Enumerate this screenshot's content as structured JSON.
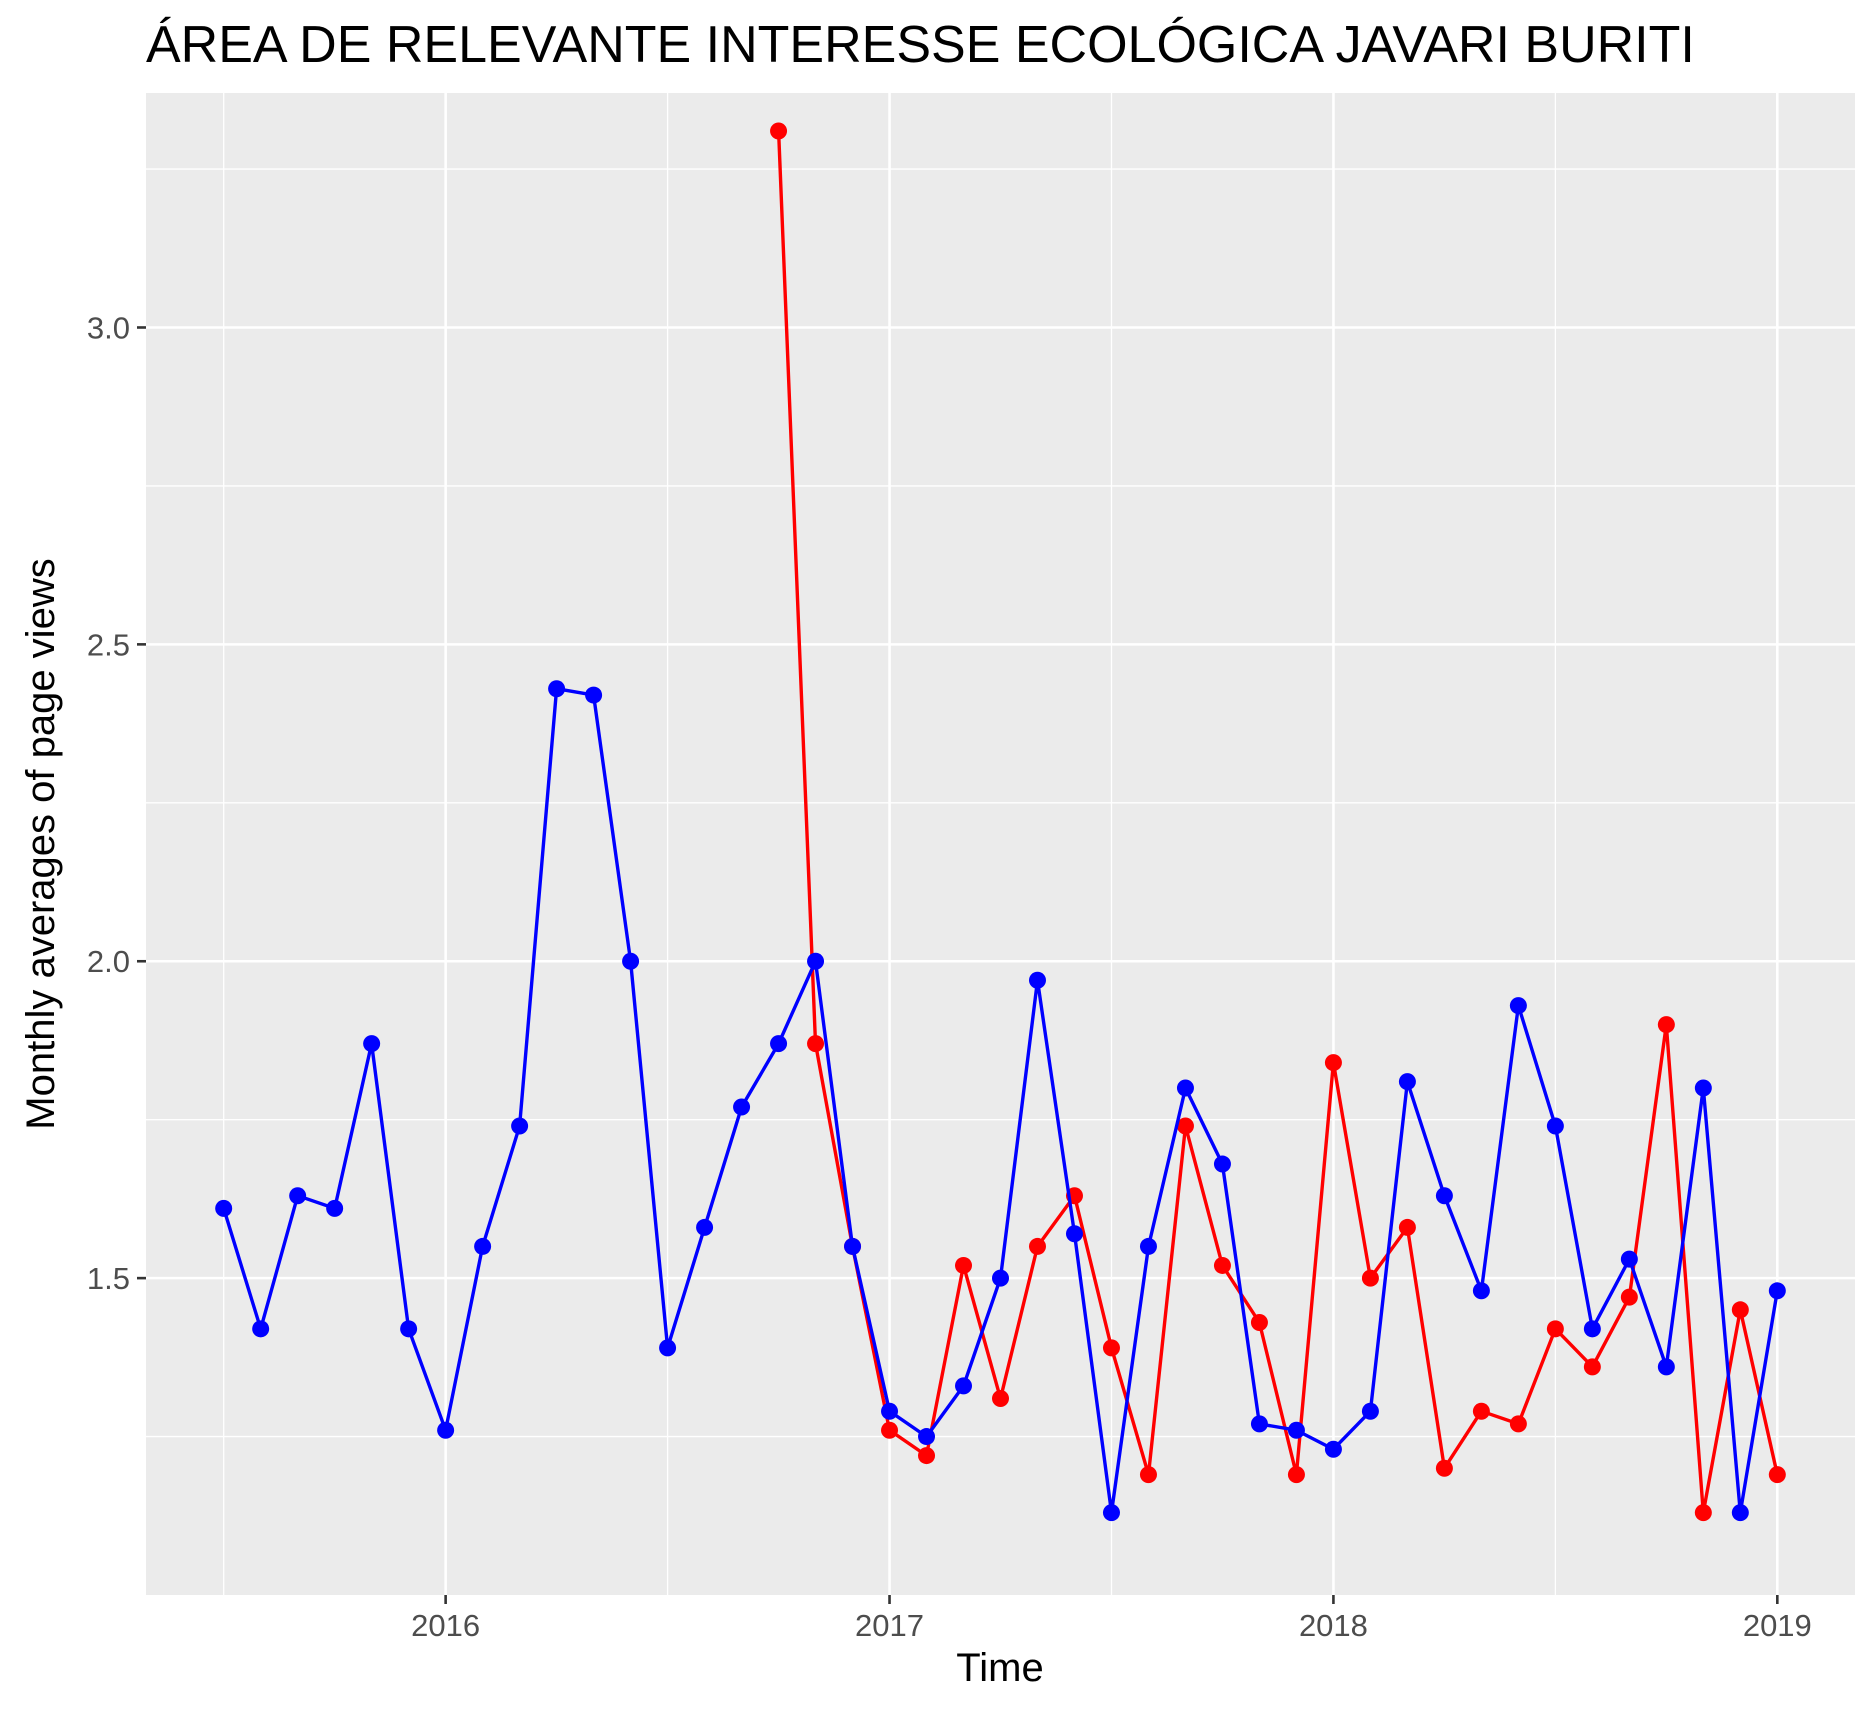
{
  "chart_data": {
    "type": "line",
    "title": "ÁREA DE RELEVANTE INTERESSE ECOLÓGICA JAVARI BURITI",
    "xlabel": "Time",
    "ylabel": "Monthly averages of page views",
    "x_ticks": [
      "2016",
      "2017",
      "2018",
      "2019"
    ],
    "y_ticks": [
      "1.5",
      "2.0",
      "2.5",
      "3.0"
    ],
    "ylim": [
      1.0,
      3.37
    ],
    "grid": true,
    "legend": "none",
    "series": [
      {
        "color": "#0000ff",
        "points": [
          [
            "2015-07",
            1.61
          ],
          [
            "2015-08",
            1.42
          ],
          [
            "2015-09",
            1.63
          ],
          [
            "2015-10",
            1.61
          ],
          [
            "2015-11",
            1.87
          ],
          [
            "2015-12",
            1.42
          ],
          [
            "2016-01",
            1.26
          ],
          [
            "2016-02",
            1.55
          ],
          [
            "2016-03",
            1.74
          ],
          [
            "2016-04",
            2.43
          ],
          [
            "2016-05",
            2.42
          ],
          [
            "2016-06",
            2.0
          ],
          [
            "2016-07",
            1.39
          ],
          [
            "2016-08",
            1.58
          ],
          [
            "2016-09",
            1.77
          ],
          [
            "2016-10",
            1.87
          ],
          [
            "2016-11",
            2.0
          ],
          [
            "2016-12",
            1.55
          ],
          [
            "2017-01",
            1.29
          ],
          [
            "2017-02",
            1.25
          ],
          [
            "2017-03",
            1.33
          ],
          [
            "2017-04",
            1.5
          ],
          [
            "2017-05",
            1.97
          ],
          [
            "2017-06",
            1.57
          ],
          [
            "2017-07",
            1.13
          ],
          [
            "2017-08",
            1.55
          ],
          [
            "2017-09",
            1.8
          ],
          [
            "2017-10",
            1.68
          ],
          [
            "2017-11",
            1.27
          ],
          [
            "2017-12",
            1.26
          ],
          [
            "2018-01",
            1.23
          ],
          [
            "2018-02",
            1.29
          ],
          [
            "2018-03",
            1.81
          ],
          [
            "2018-04",
            1.63
          ],
          [
            "2018-05",
            1.48
          ],
          [
            "2018-06",
            1.93
          ],
          [
            "2018-07",
            1.74
          ],
          [
            "2018-08",
            1.42
          ],
          [
            "2018-09",
            1.53
          ],
          [
            "2018-10",
            1.36
          ],
          [
            "2018-11",
            1.8
          ],
          [
            "2018-12",
            1.13
          ],
          [
            "2019-01",
            1.48
          ]
        ]
      },
      {
        "color": "#ff0000",
        "points": [
          [
            "2016-10",
            3.31
          ],
          [
            "2016-11",
            1.87
          ],
          [
            "2016-12",
            1.55
          ],
          [
            "2017-01",
            1.26
          ],
          [
            "2017-02",
            1.22
          ],
          [
            "2017-03",
            1.52
          ],
          [
            "2017-04",
            1.31
          ],
          [
            "2017-05",
            1.55
          ],
          [
            "2017-06",
            1.63
          ],
          [
            "2017-07",
            1.39
          ],
          [
            "2017-08",
            1.19
          ],
          [
            "2017-09",
            1.74
          ],
          [
            "2017-10",
            1.52
          ],
          [
            "2017-11",
            1.43
          ],
          [
            "2017-12",
            1.19
          ],
          [
            "2018-01",
            1.84
          ],
          [
            "2018-02",
            1.5
          ],
          [
            "2018-03",
            1.58
          ],
          [
            "2018-04",
            1.2
          ],
          [
            "2018-05",
            1.29
          ],
          [
            "2018-06",
            1.27
          ],
          [
            "2018-07",
            1.42
          ],
          [
            "2018-08",
            1.36
          ],
          [
            "2018-09",
            1.47
          ],
          [
            "2018-10",
            1.9
          ],
          [
            "2018-11",
            1.13
          ],
          [
            "2018-12",
            1.45
          ],
          [
            "2019-01",
            1.19
          ]
        ]
      }
    ]
  }
}
